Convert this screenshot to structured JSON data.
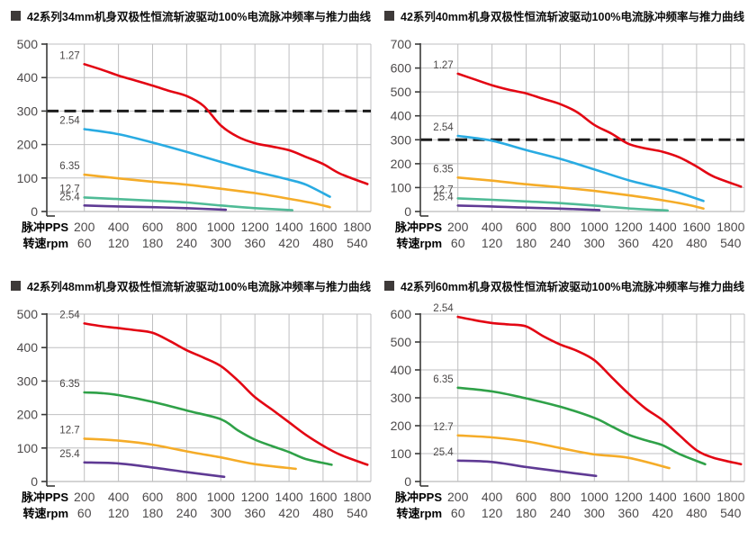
{
  "page": {
    "background": "#ffffff"
  },
  "palette": {
    "red": "#E30613",
    "blue": "#29ABE2",
    "yellow": "#F5AC28",
    "teal": "#4FBB96",
    "green": "#2FA148",
    "purple": "#5F3A94",
    "grid": "#BFBFC0",
    "grid_zero": "#A8A8A9",
    "axis": "#3A3A39",
    "dashed": "#1C1C1C",
    "tick_text": "#4D4A4B",
    "curve_label": "#4A4747",
    "title_text": "#0E0E0E",
    "bullet": "#3E3A39"
  },
  "shared": {
    "pps_header": "脉冲PPS",
    "rpm_header": "转速rpm",
    "pps_ticks": [
      200,
      400,
      600,
      800,
      1000,
      1200,
      1400,
      1600,
      1800
    ],
    "rpm_ticks": [
      60,
      120,
      180,
      240,
      300,
      360,
      420,
      480,
      540
    ]
  },
  "chart_data": [
    {
      "type": "line",
      "title": "42系列34mm机身双极性恒流斩波驱动100%电流脉冲频率与推力曲线",
      "xlabel": "脉冲PPS / 转速rpm",
      "ylabel": "推力",
      "ylim": [
        0,
        500
      ],
      "ytick_step": 100,
      "grid": true,
      "legend_position": "inline-left",
      "dashed_line_y": 300,
      "series": [
        {
          "name": "1.27",
          "color": "red",
          "points": [
            [
              200,
              440
            ],
            [
              300,
              424
            ],
            [
              400,
              406
            ],
            [
              500,
              391
            ],
            [
              600,
              376
            ],
            [
              700,
              360
            ],
            [
              800,
              345
            ],
            [
              900,
              315
            ],
            [
              1000,
              257
            ],
            [
              1100,
              223
            ],
            [
              1200,
              204
            ],
            [
              1300,
              194
            ],
            [
              1400,
              183
            ],
            [
              1500,
              163
            ],
            [
              1600,
              142
            ],
            [
              1700,
              113
            ],
            [
              1860,
              82
            ]
          ]
        },
        {
          "name": "2.54",
          "color": "blue",
          "points": [
            [
              200,
              246
            ],
            [
              400,
              231
            ],
            [
              600,
              206
            ],
            [
              800,
              178
            ],
            [
              1000,
              148
            ],
            [
              1200,
              120
            ],
            [
              1400,
              95
            ],
            [
              1500,
              80
            ],
            [
              1640,
              44
            ]
          ]
        },
        {
          "name": "6.35",
          "color": "yellow",
          "points": [
            [
              200,
              110
            ],
            [
              400,
              99
            ],
            [
              600,
              89
            ],
            [
              800,
              80
            ],
            [
              1000,
              68
            ],
            [
              1200,
              55
            ],
            [
              1400,
              38
            ],
            [
              1550,
              24
            ],
            [
              1640,
              13
            ]
          ]
        },
        {
          "name": "12.7",
          "color": "teal",
          "points": [
            [
              200,
              42
            ],
            [
              400,
              37
            ],
            [
              600,
              32
            ],
            [
              800,
              27
            ],
            [
              1000,
              18
            ],
            [
              1200,
              10
            ],
            [
              1420,
              4
            ]
          ]
        },
        {
          "name": "25.4",
          "color": "purple",
          "points": [
            [
              200,
              18
            ],
            [
              400,
              15
            ],
            [
              600,
              13
            ],
            [
              800,
              10
            ],
            [
              1030,
              5
            ]
          ]
        }
      ]
    },
    {
      "type": "line",
      "title": "42系列40mm机身双极性恒流斩波驱动100%电流脉冲频率与推力曲线",
      "xlabel": "脉冲PPS / 转速rpm",
      "ylabel": "推力",
      "ylim": [
        0,
        700
      ],
      "ytick_step": 100,
      "grid": true,
      "legend_position": "inline-left",
      "dashed_line_y": 300,
      "series": [
        {
          "name": "1.27",
          "color": "red",
          "points": [
            [
              200,
              576
            ],
            [
              300,
              552
            ],
            [
              400,
              528
            ],
            [
              500,
              509
            ],
            [
              600,
              494
            ],
            [
              700,
              471
            ],
            [
              800,
              449
            ],
            [
              900,
              415
            ],
            [
              1000,
              362
            ],
            [
              1100,
              326
            ],
            [
              1200,
              283
            ],
            [
              1300,
              264
            ],
            [
              1400,
              250
            ],
            [
              1500,
              226
            ],
            [
              1600,
              188
            ],
            [
              1700,
              146
            ],
            [
              1860,
              104
            ]
          ]
        },
        {
          "name": "2.54",
          "color": "blue",
          "points": [
            [
              200,
              316
            ],
            [
              400,
              296
            ],
            [
              600,
              257
            ],
            [
              800,
              220
            ],
            [
              1000,
              176
            ],
            [
              1200,
              131
            ],
            [
              1400,
              96
            ],
            [
              1500,
              77
            ],
            [
              1640,
              44
            ]
          ]
        },
        {
          "name": "6.35",
          "color": "yellow",
          "points": [
            [
              200,
              142
            ],
            [
              400,
              129
            ],
            [
              600,
              114
            ],
            [
              800,
              101
            ],
            [
              1000,
              86
            ],
            [
              1200,
              68
            ],
            [
              1400,
              47
            ],
            [
              1550,
              28
            ],
            [
              1640,
              12
            ]
          ]
        },
        {
          "name": "12.7",
          "color": "teal",
          "points": [
            [
              200,
              55
            ],
            [
              400,
              49
            ],
            [
              600,
              42
            ],
            [
              800,
              35
            ],
            [
              1000,
              25
            ],
            [
              1200,
              13
            ],
            [
              1430,
              4
            ]
          ]
        },
        {
          "name": "25.4",
          "color": "purple",
          "points": [
            [
              200,
              25
            ],
            [
              400,
              21
            ],
            [
              600,
              16
            ],
            [
              800,
              12
            ],
            [
              1030,
              6
            ]
          ]
        }
      ]
    },
    {
      "type": "line",
      "title": "42系列48mm机身双极性恒流斩波驱动100%电流脉冲频率与推力曲线",
      "xlabel": "脉冲PPS / 转速rpm",
      "ylabel": "推力",
      "ylim": [
        0,
        500
      ],
      "ytick_step": 100,
      "grid": true,
      "legend_position": "inline-left",
      "dashed_line_y": null,
      "series": [
        {
          "name": "2.54",
          "color": "red",
          "points": [
            [
              200,
              472
            ],
            [
              300,
              464
            ],
            [
              400,
              458
            ],
            [
              500,
              452
            ],
            [
              600,
              444
            ],
            [
              700,
              420
            ],
            [
              800,
              392
            ],
            [
              900,
              370
            ],
            [
              1000,
              345
            ],
            [
              1100,
              302
            ],
            [
              1200,
              252
            ],
            [
              1300,
              215
            ],
            [
              1400,
              177
            ],
            [
              1500,
              139
            ],
            [
              1600,
              107
            ],
            [
              1700,
              80
            ],
            [
              1860,
              50
            ]
          ]
        },
        {
          "name": "6.35",
          "color": "green",
          "points": [
            [
              200,
              266
            ],
            [
              300,
              264
            ],
            [
              400,
              258
            ],
            [
              600,
              238
            ],
            [
              800,
              212
            ],
            [
              1000,
              186
            ],
            [
              1100,
              153
            ],
            [
              1200,
              125
            ],
            [
              1300,
              106
            ],
            [
              1400,
              88
            ],
            [
              1500,
              67
            ],
            [
              1650,
              50
            ]
          ]
        },
        {
          "name": "12.7",
          "color": "yellow",
          "points": [
            [
              200,
              128
            ],
            [
              400,
              122
            ],
            [
              600,
              110
            ],
            [
              800,
              90
            ],
            [
              1000,
              72
            ],
            [
              1200,
              52
            ],
            [
              1440,
              38
            ]
          ]
        },
        {
          "name": "25.4",
          "color": "purple",
          "points": [
            [
              200,
              57
            ],
            [
              400,
              54
            ],
            [
              600,
              42
            ],
            [
              800,
              28
            ],
            [
              1020,
              14
            ]
          ]
        }
      ]
    },
    {
      "type": "line",
      "title": "42系列60mm机身双极性恒流斩波驱动100%电流脉冲频率与推力曲线",
      "xlabel": "脉冲PPS / 转速rpm",
      "ylabel": "推力",
      "ylim": [
        0,
        600
      ],
      "ytick_step": 100,
      "grid": true,
      "legend_position": "inline-left",
      "dashed_line_y": null,
      "series": [
        {
          "name": "2.54",
          "color": "red",
          "points": [
            [
              200,
              590
            ],
            [
              300,
              578
            ],
            [
              400,
              568
            ],
            [
              500,
              563
            ],
            [
              600,
              556
            ],
            [
              700,
              521
            ],
            [
              800,
              491
            ],
            [
              900,
              468
            ],
            [
              1000,
              435
            ],
            [
              1100,
              375
            ],
            [
              1200,
              315
            ],
            [
              1300,
              262
            ],
            [
              1400,
              220
            ],
            [
              1500,
              165
            ],
            [
              1600,
              112
            ],
            [
              1700,
              85
            ],
            [
              1860,
              62
            ]
          ]
        },
        {
          "name": "6.35",
          "color": "green",
          "points": [
            [
              200,
              336
            ],
            [
              400,
              323
            ],
            [
              600,
              298
            ],
            [
              800,
              268
            ],
            [
              1000,
              228
            ],
            [
              1100,
              198
            ],
            [
              1200,
              168
            ],
            [
              1300,
              148
            ],
            [
              1400,
              130
            ],
            [
              1500,
              98
            ],
            [
              1650,
              62
            ]
          ]
        },
        {
          "name": "12.7",
          "color": "yellow",
          "points": [
            [
              200,
              165
            ],
            [
              400,
              158
            ],
            [
              600,
              144
            ],
            [
              800,
              120
            ],
            [
              1000,
              97
            ],
            [
              1200,
              85
            ],
            [
              1440,
              48
            ]
          ]
        },
        {
          "name": "25.4",
          "color": "purple",
          "points": [
            [
              200,
              75
            ],
            [
              400,
              70
            ],
            [
              600,
              52
            ],
            [
              800,
              36
            ],
            [
              1010,
              20
            ]
          ]
        }
      ]
    }
  ]
}
